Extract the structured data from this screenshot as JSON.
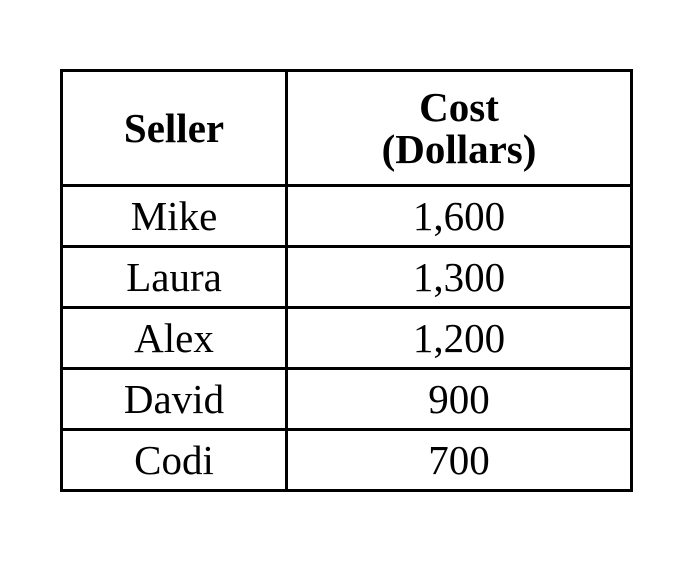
{
  "table": {
    "headers": {
      "seller": "Seller",
      "cost_line1": "Cost",
      "cost_line2": "(Dollars)"
    },
    "rows": [
      {
        "seller": "Mike",
        "cost": "1,600"
      },
      {
        "seller": "Laura",
        "cost": "1,300"
      },
      {
        "seller": "Alex",
        "cost": "1,200"
      },
      {
        "seller": "David",
        "cost": "900"
      },
      {
        "seller": "Codi",
        "cost": "700"
      }
    ]
  }
}
